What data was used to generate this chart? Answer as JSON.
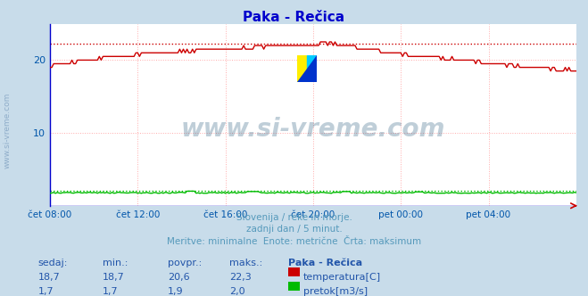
{
  "title": "Paka - Rečica",
  "title_color": "#0000cc",
  "bg_color": "#c8dcea",
  "plot_bg_color": "#ffffff",
  "grid_color": "#ffaaaa",
  "grid_style": ":",
  "xlabel_color": "#0055aa",
  "ylabel_color": "#0055aa",
  "watermark_text": "www.si-vreme.com",
  "watermark_color": "#1a5276",
  "watermark_alpha": 0.28,
  "subtitle_lines": [
    "Slovenija / reke in morje.",
    "zadnji dan / 5 minut.",
    "Meritve: minimalne  Enote: metrične  Črta: maksimum"
  ],
  "subtitle_color": "#5599bb",
  "table_header": [
    "sedaj:",
    "min.:",
    "povpr.:",
    "maks.:",
    "Paka - Rečica"
  ],
  "table_rows": [
    [
      "18,7",
      "18,7",
      "20,6",
      "22,3",
      "temperatura[C]",
      "#cc0000"
    ],
    [
      "1,7",
      "1,7",
      "1,9",
      "2,0",
      "pretok[m3/s]",
      "#00bb00"
    ]
  ],
  "table_color": "#2255aa",
  "xticklabels": [
    "čet 08:00",
    "čet 12:00",
    "čet 16:00",
    "čet 20:00",
    "pet 00:00",
    "pet 04:00"
  ],
  "xtick_positions": [
    0,
    48,
    96,
    144,
    192,
    240
  ],
  "n_points": 289,
  "ylim": [
    0,
    25
  ],
  "yticks": [
    10,
    20
  ],
  "temp_max": 22.3,
  "flow_max": 2.0,
  "temp_line_color": "#cc0000",
  "flow_line_color": "#00bb00",
  "hline_temp_color": "#cc0000",
  "hline_flow_color": "#00bb00",
  "left_spine_color": "#0000cc",
  "bottom_spine_color": "#cc0000",
  "side_text": "www.si-vreme.com",
  "side_text_color": "#7799bb"
}
